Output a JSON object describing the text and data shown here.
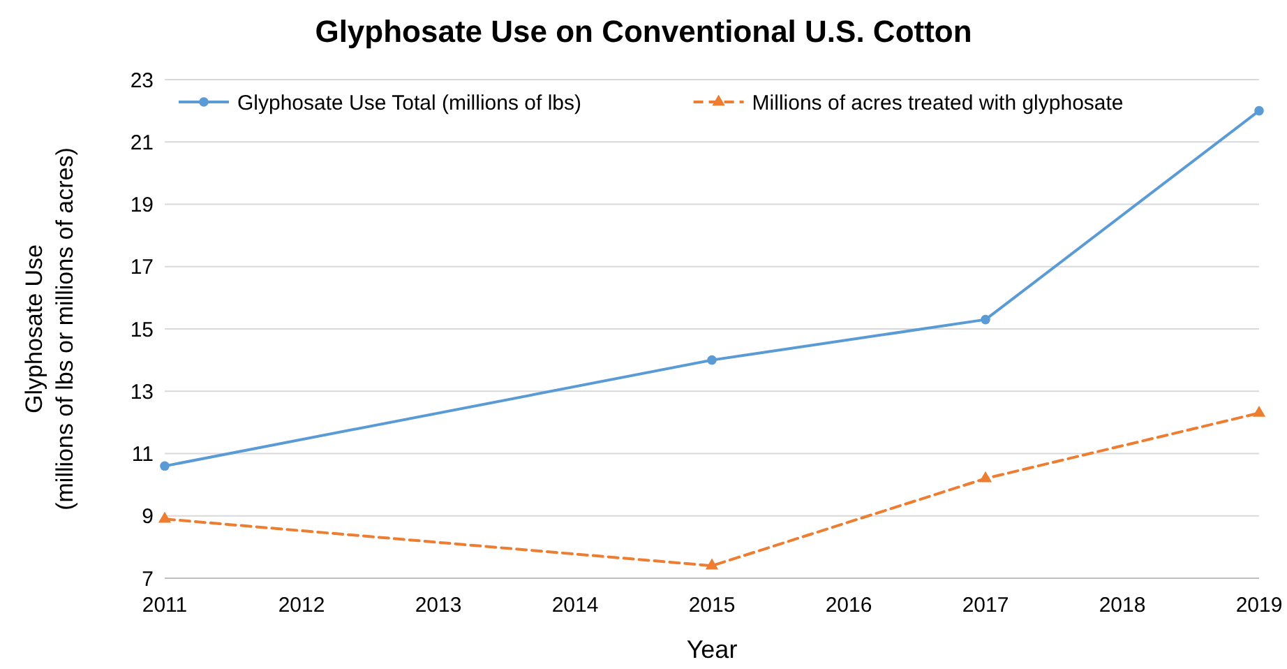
{
  "chart_data": {
    "type": "line",
    "title": "Glyphosate Use on Conventional U.S. Cotton",
    "xlabel": "Year",
    "ylabel": "Glyphosate Use\n(millions of lbs or millions of acres)",
    "x": [
      2011,
      2015,
      2017,
      2019
    ],
    "xlim": [
      2011,
      2019
    ],
    "xticks": [
      2011,
      2012,
      2013,
      2014,
      2015,
      2016,
      2017,
      2018,
      2019
    ],
    "ylim": [
      7,
      23
    ],
    "yticks": [
      7,
      9,
      11,
      13,
      15,
      17,
      19,
      21,
      23
    ],
    "grid": "y",
    "legend": "top",
    "series": [
      {
        "name": "Glyphosate Use Total (millions of lbs)",
        "color": "#5b9bd5",
        "values": [
          10.6,
          14.0,
          15.3,
          22.0
        ],
        "marker": "circle",
        "line_style": "solid"
      },
      {
        "name": "Millions of acres treated with glyphosate",
        "color": "#ed7d31",
        "values": [
          8.9,
          7.4,
          10.2,
          12.3
        ],
        "marker": "triangle",
        "line_style": "dashed"
      }
    ]
  }
}
